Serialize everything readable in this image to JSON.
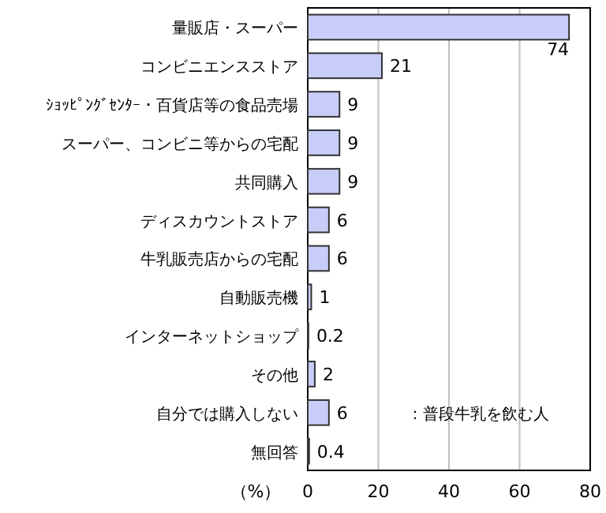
{
  "chart_data": {
    "type": "bar",
    "orientation": "horizontal",
    "xlabel": "（%）",
    "categories": [
      "量販店・スーパー",
      "コンビニエンスストア",
      "ｼｮｯﾋﾟﾝｸﾞｾﾝﾀｰ・百貨店等の食品売場",
      "スーパー、コンビニ等からの宅配",
      "共同購入",
      "ディスカウントストア",
      "牛乳販売店からの宅配",
      "自動販売機",
      "インターネットショップ",
      "その他",
      "自分では購入しない",
      "無回答"
    ],
    "values": [
      74,
      21,
      9,
      9,
      9,
      6,
      6,
      1,
      0.2,
      2,
      6,
      0.4
    ],
    "color": "#c8cdf8",
    "xlim": [
      0,
      80
    ],
    "xticks": [
      0,
      20,
      40,
      60,
      80
    ],
    "grid": "x",
    "data_labels": true,
    "annotations": [
      "：普段牛乳を飲む人"
    ]
  }
}
